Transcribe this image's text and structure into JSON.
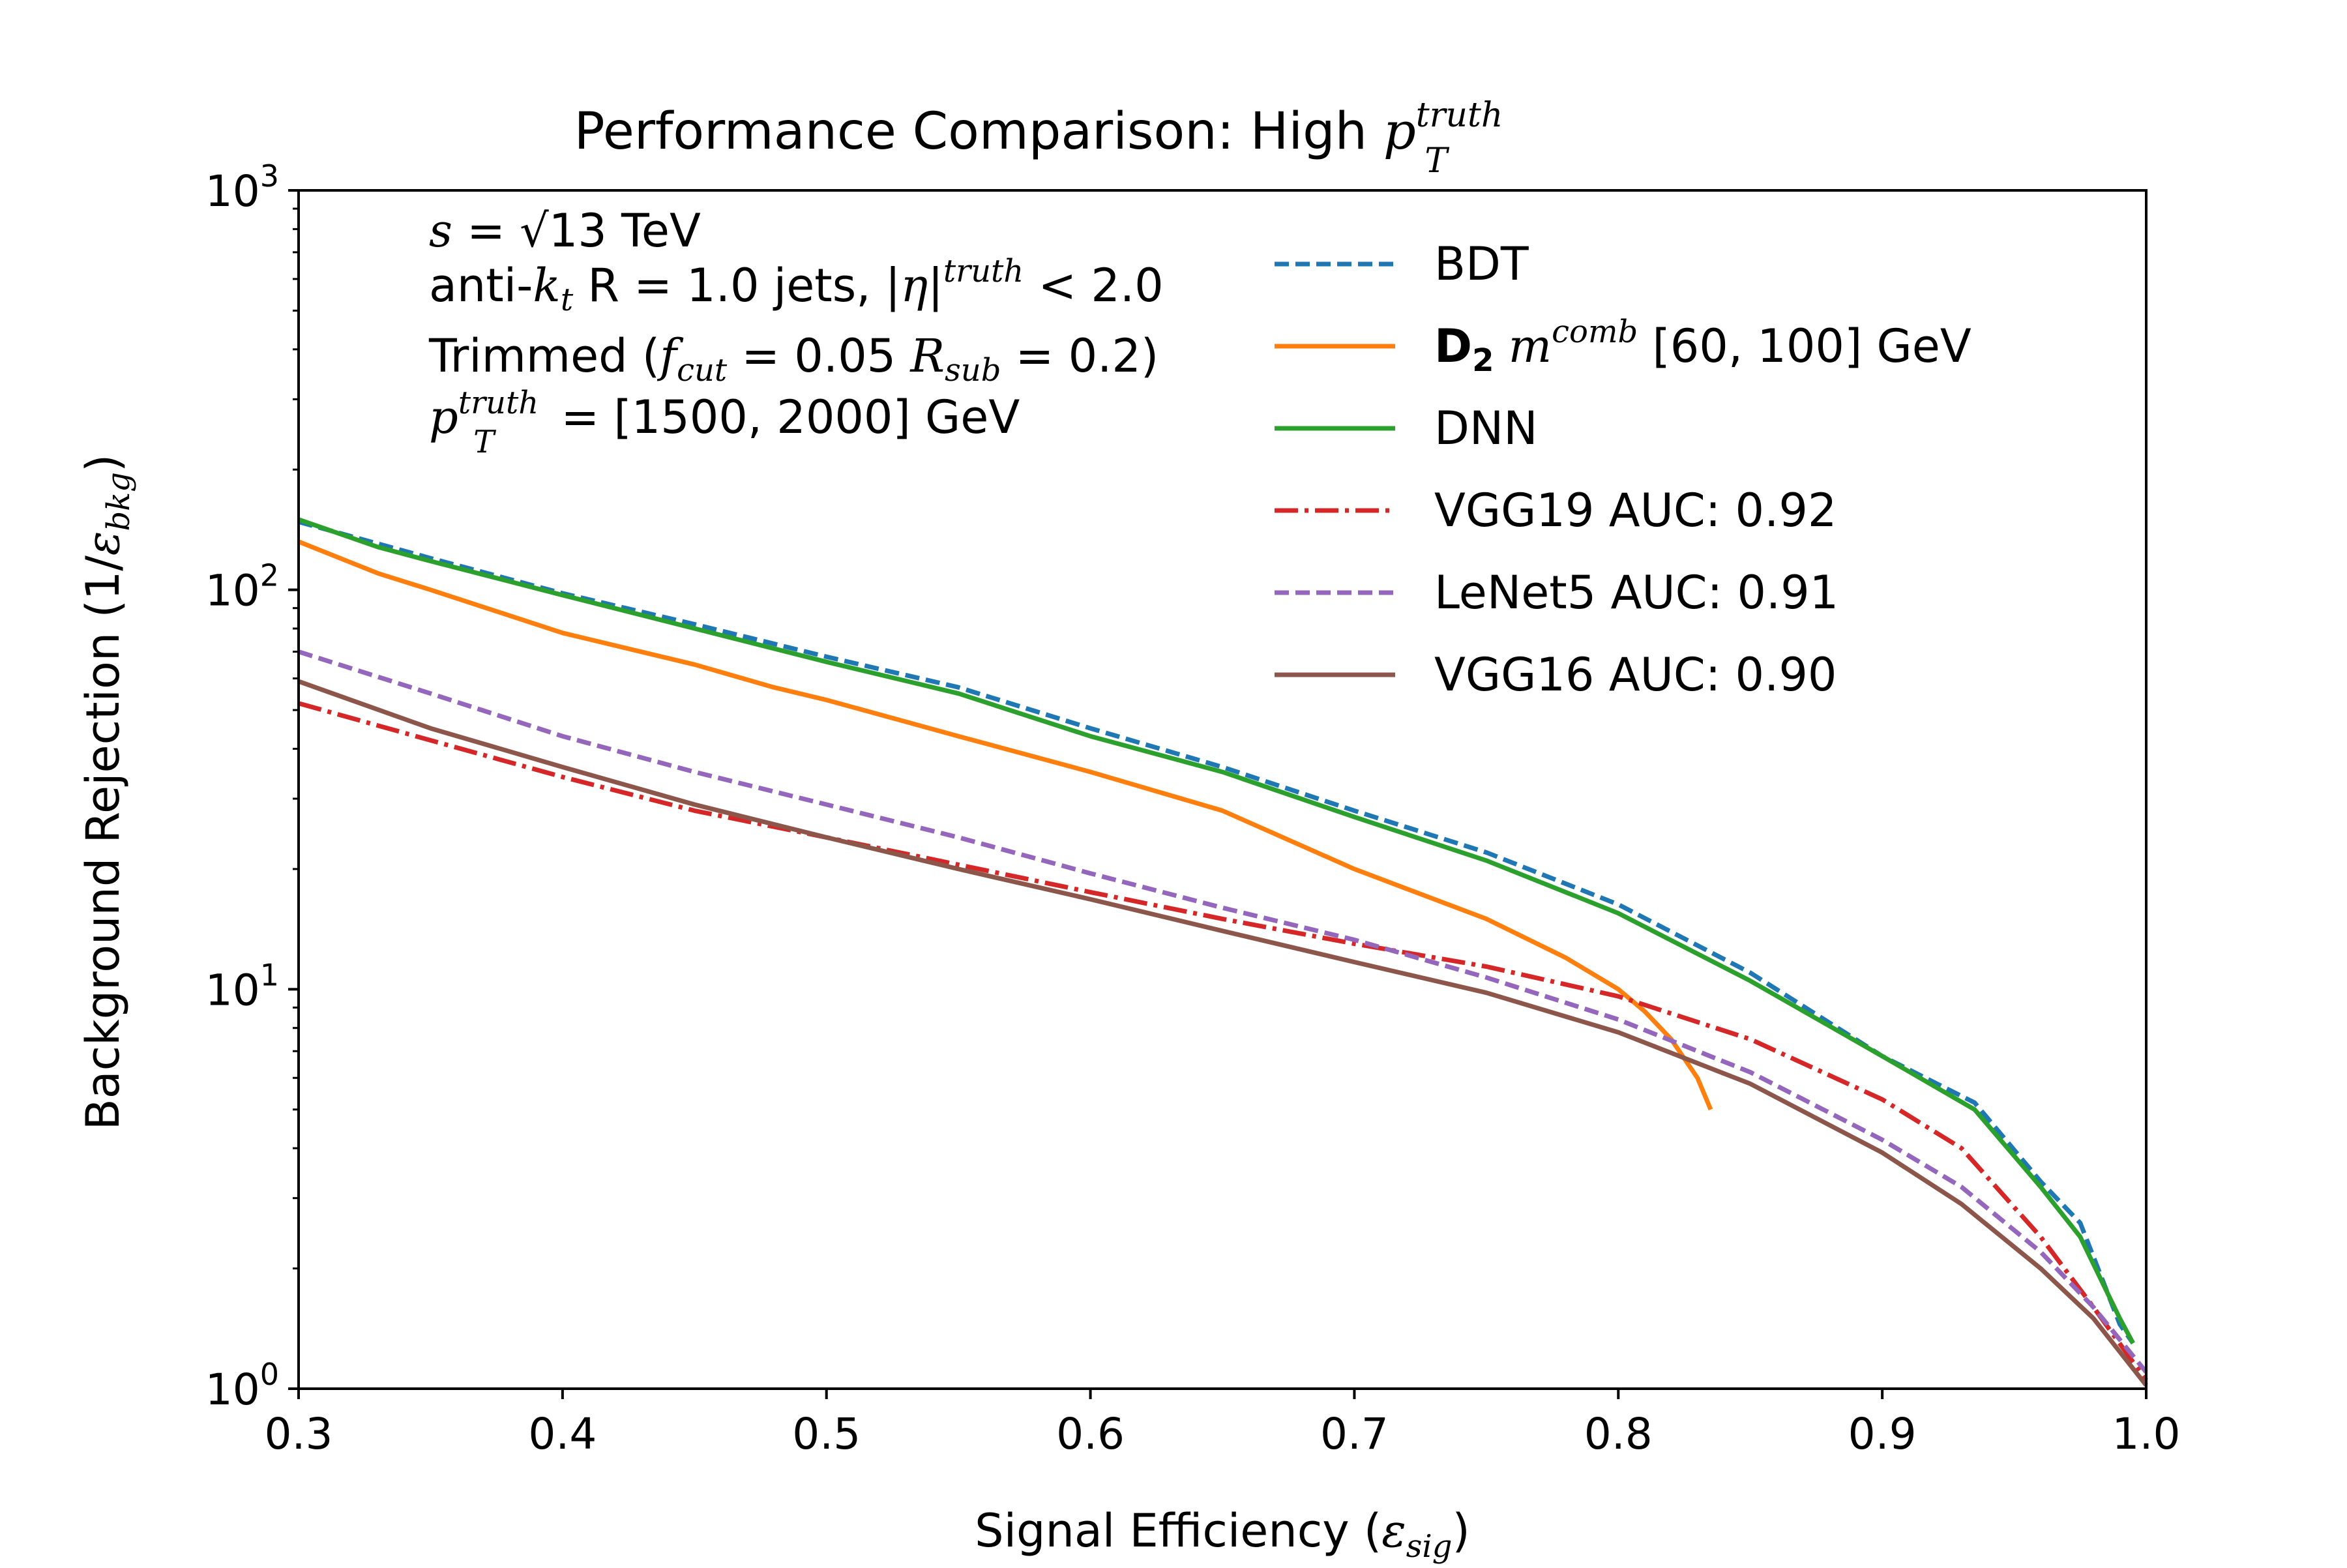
{
  "chart_data": {
    "type": "line",
    "title": {
      "prefix": "Performance Comparison: High ",
      "p": "p",
      "sup": "truth",
      "sub": "T"
    },
    "xlabel": {
      "prefix": "Signal Efficiency (",
      "eps": "ε",
      "sub": "sig",
      "suffix": ")"
    },
    "ylabel": {
      "prefix": "Background Rejection (1/",
      "eps": "ε",
      "sub": "bkg",
      "suffix": ")"
    },
    "xlim": [
      0.3,
      1.0
    ],
    "ylim": [
      1,
      1000
    ],
    "yscale": "log",
    "grid": false,
    "legend_position": "upper-right",
    "x_ticks": [
      "0.3",
      "0.4",
      "0.5",
      "0.6",
      "0.7",
      "0.8",
      "0.9",
      "1.0"
    ],
    "x_tick_values": [
      0.3,
      0.4,
      0.5,
      0.6,
      0.7,
      0.8,
      0.9,
      1.0
    ],
    "y_ticks": [
      {
        "value": 1,
        "base": "10",
        "exp": "0"
      },
      {
        "value": 10,
        "base": "10",
        "exp": "1"
      },
      {
        "value": 100,
        "base": "10",
        "exp": "2"
      },
      {
        "value": 1000,
        "base": "10",
        "exp": "3"
      }
    ],
    "annotations": {
      "line1": {
        "s": "s",
        "eq": " = ",
        "sqrt": "√",
        "val": "13",
        "unit": " TeV"
      },
      "line2": {
        "prefix": "anti-",
        "k": "k",
        "ksub": "t",
        "middle": " R = 1.0 jets, |",
        "eta": "η",
        "bar": "|",
        "sup": "truth",
        "suffix": " < 2.0"
      },
      "line3": {
        "prefix": "Trimmed (",
        "f": "f",
        "fsub": "cut",
        "mid": " = 0.05 ",
        "R": "R",
        "rsub": "sub",
        "suffix": " = 0.2)"
      },
      "line4": {
        "p": "p",
        "sup": "truth",
        "sub": "T",
        "suffix": " = [1500, 2000] GeV"
      }
    },
    "series": [
      {
        "name": "BDT",
        "color": "#1f77b4",
        "style": "dashed",
        "x": [
          0.3,
          0.35,
          0.4,
          0.45,
          0.5,
          0.55,
          0.6,
          0.65,
          0.7,
          0.75,
          0.8,
          0.85,
          0.9,
          0.935,
          0.96,
          0.975,
          0.99,
          0.995
        ],
        "y": [
          148,
          120,
          98,
          82,
          68,
          57,
          45,
          36,
          28,
          22,
          16.3,
          11,
          6.8,
          5.2,
          3.3,
          2.6,
          1.45,
          1.3
        ]
      },
      {
        "name": "D2 m^comb [60, 100] GeV",
        "legend_bold": "D",
        "legend_bold_sub": "2",
        "legend_m": "m",
        "legend_sup": "comb",
        "legend_suffix": " [60, 100] GeV",
        "color": "#ff7f0e",
        "style": "solid",
        "x": [
          0.3,
          0.33,
          0.35,
          0.4,
          0.45,
          0.48,
          0.5,
          0.55,
          0.6,
          0.65,
          0.7,
          0.75,
          0.78,
          0.8,
          0.81,
          0.82,
          0.83,
          0.835
        ],
        "y": [
          132,
          110,
          100,
          78,
          65,
          57,
          53,
          43,
          35,
          28,
          20,
          15,
          12,
          10,
          8.8,
          7.5,
          6,
          5
        ]
      },
      {
        "name": "DNN",
        "color": "#2ca02c",
        "style": "solid",
        "x": [
          0.3,
          0.33,
          0.35,
          0.4,
          0.45,
          0.5,
          0.55,
          0.6,
          0.65,
          0.7,
          0.75,
          0.8,
          0.85,
          0.9,
          0.935,
          0.96,
          0.975,
          0.99,
          0.995
        ],
        "y": [
          150,
          128,
          118,
          97,
          80,
          66,
          55,
          43,
          35,
          27,
          21,
          15.5,
          10.5,
          6.8,
          5,
          3.2,
          2.4,
          1.5,
          1.3
        ]
      },
      {
        "name": "VGG19 AUC: 0.92",
        "color": "#d62728",
        "style": "dashdot",
        "x": [
          0.3,
          0.35,
          0.4,
          0.45,
          0.5,
          0.55,
          0.6,
          0.65,
          0.7,
          0.75,
          0.8,
          0.85,
          0.9,
          0.93,
          0.96,
          0.98,
          1.0
        ],
        "y": [
          52,
          42,
          34,
          28,
          24,
          20.5,
          17.5,
          15,
          13,
          11.4,
          9.6,
          7.5,
          5.3,
          4,
          2.4,
          1.6,
          1.05
        ]
      },
      {
        "name": "LeNet5 AUC: 0.91",
        "color": "#9467bd",
        "style": "dashed",
        "x": [
          0.3,
          0.35,
          0.4,
          0.45,
          0.5,
          0.55,
          0.6,
          0.65,
          0.7,
          0.75,
          0.8,
          0.85,
          0.9,
          0.93,
          0.96,
          0.98,
          1.0
        ],
        "y": [
          70,
          55,
          43,
          35,
          29,
          24,
          19.5,
          16,
          13.3,
          10.7,
          8.4,
          6.2,
          4.2,
          3.2,
          2.2,
          1.6,
          1.1
        ]
      },
      {
        "name": "VGG16 AUC: 0.90",
        "color": "#8c564b",
        "style": "solid",
        "x": [
          0.3,
          0.35,
          0.4,
          0.45,
          0.5,
          0.55,
          0.6,
          0.65,
          0.7,
          0.75,
          0.8,
          0.85,
          0.9,
          0.93,
          0.96,
          0.98,
          1.0
        ],
        "y": [
          59,
          45,
          36,
          29,
          24,
          20,
          16.8,
          14,
          11.7,
          9.8,
          7.8,
          5.8,
          3.9,
          2.9,
          2.0,
          1.5,
          1.02
        ]
      }
    ]
  }
}
